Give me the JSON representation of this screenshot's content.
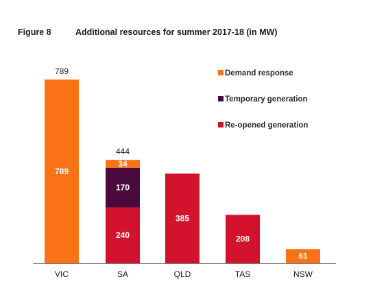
{
  "figure": {
    "number": "Figure 8",
    "title": "Additional resources for summer 2017-18 (in MW)"
  },
  "chart_data": {
    "type": "bar",
    "stacked": true,
    "title": "Additional resources for summer 2017-18 (in MW)",
    "xlabel": "",
    "ylabel": "",
    "ylim": [
      0,
      800
    ],
    "grid": false,
    "legend_position": "top-right",
    "categories": [
      "VIC",
      "SA",
      "QLD",
      "TAS",
      "NSW"
    ],
    "totals": [
      "789",
      "444",
      "",
      "",
      ""
    ],
    "series": [
      {
        "name": "Re-opened generation",
        "color": "#d3132e",
        "values": [
          0,
          240,
          385,
          208,
          0
        ]
      },
      {
        "name": "Temporary generation",
        "color": "#4a0a3c",
        "values": [
          0,
          170,
          0,
          0,
          0
        ]
      },
      {
        "name": "Demand response",
        "color": "#f97316",
        "values": [
          789,
          34,
          0,
          0,
          61
        ]
      }
    ],
    "legend_order": [
      "Demand response",
      "Temporary generation",
      "Re-opened generation"
    ]
  }
}
